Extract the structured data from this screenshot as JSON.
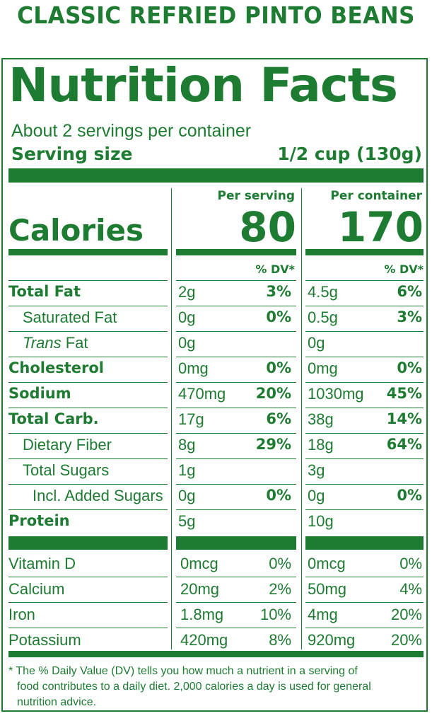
{
  "product": {
    "title": "CLASSIC REFRIED PINTO BEANS"
  },
  "label": {
    "heading": "Nutrition Facts",
    "servings_per_container": "About 2 servings per container",
    "serving_size_label": "Serving size",
    "serving_size_value": "1/2 cup (130g)",
    "col_per_serving": "Per serving",
    "col_per_container": "Per container",
    "calories_label": "Calories",
    "calories_serving": "80",
    "calories_container": "170",
    "dv_header": "% DV*",
    "nutrients": [
      {
        "name": "Total Fat",
        "serving": "2g",
        "serving_dv": "3%",
        "container": "4.5g",
        "container_dv": "6%"
      },
      {
        "name": "Saturated Fat",
        "serving": "0g",
        "serving_dv": "0%",
        "container": "0.5g",
        "container_dv": "3%"
      },
      {
        "name_italic": "Trans",
        "name_rest": " Fat",
        "serving": "0g",
        "container": "0g"
      },
      {
        "name": "Cholesterol",
        "serving": "0mg",
        "serving_dv": "0%",
        "container": "0mg",
        "container_dv": "0%"
      },
      {
        "name": "Sodium",
        "serving": "470mg",
        "serving_dv": "20%",
        "container": "1030mg",
        "container_dv": "45%"
      },
      {
        "name": "Total Carb.",
        "serving": "17g",
        "serving_dv": "6%",
        "container": "38g",
        "container_dv": "14%"
      },
      {
        "name": "Dietary Fiber",
        "serving": "8g",
        "serving_dv": "29%",
        "container": "18g",
        "container_dv": "64%"
      },
      {
        "name": "Total Sugars",
        "serving": "1g",
        "container": "3g"
      },
      {
        "name": "Incl. Added Sugars",
        "serving": "0g",
        "serving_dv": "0%",
        "container": "0g",
        "container_dv": "0%"
      },
      {
        "name": "Protein",
        "serving": "5g",
        "container": "10g"
      }
    ],
    "vitamins": [
      {
        "name": "Vitamin D",
        "serving": "0mcg",
        "serving_dv": "0%",
        "container": "0mcg",
        "container_dv": "0%"
      },
      {
        "name": "Calcium",
        "serving": "20mg",
        "serving_dv": "2%",
        "container": "50mg",
        "container_dv": "4%"
      },
      {
        "name": "Iron",
        "serving": "1.8mg",
        "serving_dv": "10%",
        "container": "4mg",
        "container_dv": "20%"
      },
      {
        "name": "Potassium",
        "serving": "420mg",
        "serving_dv": "8%",
        "container": "920mg",
        "container_dv": "20%"
      }
    ],
    "footnote_line1": "* The % Daily Value (DV) tells you how much a nutrient in a serving of",
    "footnote_line2": "food contributes to a daily diet. 2,000 calories a day is used for general",
    "footnote_line3": "nutrition advice."
  },
  "colors": {
    "label_green": "#1e7b32",
    "background": "#ffffff"
  }
}
